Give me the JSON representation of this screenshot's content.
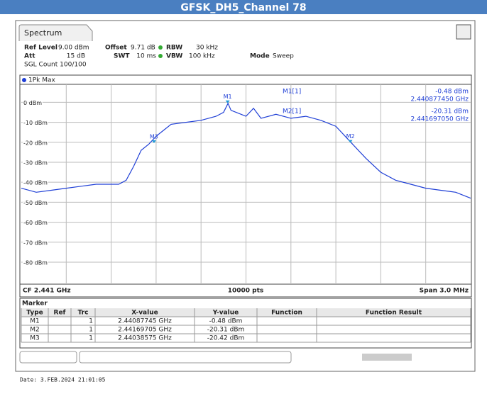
{
  "title": "GFSK_DH5_Channel 78",
  "tab": "Spectrum",
  "settings": {
    "ref_level_label": "Ref Level",
    "ref_level": "9.00 dBm",
    "offset_label": "Offset",
    "offset": "9.71 dB",
    "rbw_label": "RBW",
    "rbw": "30 kHz",
    "att_label": "Att",
    "att": "15 dB",
    "swt_label": "SWT",
    "swt": "10 ms",
    "vbw_label": "VBW",
    "vbw": "100 kHz",
    "mode_label": "Mode",
    "mode": "Sweep",
    "sgl": "SGL Count 100/100"
  },
  "readout": [
    {
      "name": "M1[1]",
      "level": "-0.48 dBm",
      "freq": "2.440877450 GHz"
    },
    {
      "name": "M2[1]",
      "level": "-20.31 dBm",
      "freq": "2.441697050 GHz"
    }
  ],
  "chart_data": {
    "type": "line",
    "x": [
      2.4395,
      2.4396,
      2.4397,
      2.4398,
      2.4399,
      2.44,
      2.44015,
      2.4402,
      2.44025,
      2.4403,
      2.44035,
      2.4404,
      2.44045,
      2.4405,
      2.4406,
      2.4407,
      2.4408,
      2.44085,
      2.44088,
      2.4409,
      2.441,
      2.44105,
      2.4411,
      2.4412,
      2.4413,
      2.4414,
      2.4415,
      2.4416,
      2.4417,
      2.4418,
      2.4419,
      2.442,
      2.4421,
      2.4422,
      2.4423,
      2.4424,
      2.4425
    ],
    "series": [
      {
        "name": "1Pk Max",
        "color": "#1f3fd6",
        "values": [
          -43,
          -45,
          -44,
          -43,
          -42,
          -41,
          -41,
          -39,
          -32,
          -24,
          -21,
          -17,
          -14,
          -11,
          -10,
          -9,
          -7,
          -5,
          -0.5,
          -4,
          -7,
          -3,
          -8,
          -6,
          -8,
          -7,
          -9,
          -12,
          -20,
          -28,
          -35,
          -39,
          -41,
          -43,
          -44,
          -45,
          -48
        ]
      }
    ],
    "xlim": [
      2.4395,
      2.4425
    ],
    "ylim": [
      -91,
      9
    ],
    "yticks": [
      {
        "value": 0,
        "label": "0 dBm"
      },
      {
        "value": -10,
        "label": "-10 dBm"
      },
      {
        "value": -20,
        "label": "-20 dBm"
      },
      {
        "value": -30,
        "label": "-30 dBm"
      },
      {
        "value": -40,
        "label": "-40 dBm"
      },
      {
        "value": -50,
        "label": "-50 dBm"
      },
      {
        "value": -60,
        "label": "-60 dBm"
      },
      {
        "value": -70,
        "label": "-70 dBm"
      },
      {
        "value": -80,
        "label": "-80 dBm"
      }
    ],
    "grid": true,
    "markers": [
      {
        "label": "M1",
        "x": 2.44087745,
        "y": -0.48
      },
      {
        "label": "M2",
        "x": 2.44169705,
        "y": -20.31
      },
      {
        "label": "M3",
        "x": 2.44038575,
        "y": -20.42
      }
    ]
  },
  "footer": {
    "cf": "CF 2.441 GHz",
    "pts": "10000 pts",
    "span": "Span 3.0 MHz"
  },
  "marker_table": {
    "title": "Marker",
    "headers": [
      "Type",
      "Ref",
      "Trc",
      "X-value",
      "Y-value",
      "Function",
      "Function Result"
    ],
    "rows": [
      [
        "M1",
        "1",
        "2.44087745 GHz",
        "-0.48 dBm"
      ],
      [
        "M2",
        "1",
        "2.44169705 GHz",
        "-20.31 dBm"
      ],
      [
        "M3",
        "1",
        "2.44038575 GHz",
        "-20.42 dBm"
      ]
    ]
  },
  "date": "Date: 3.FEB.2024  21:01:05"
}
